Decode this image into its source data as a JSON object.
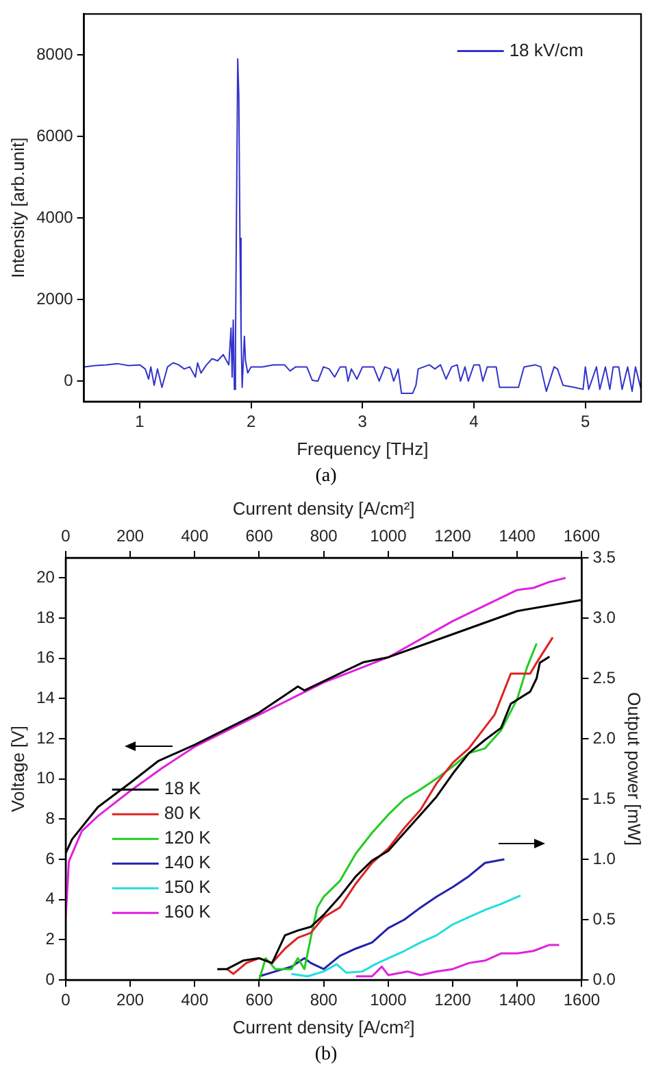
{
  "chart_data": [
    {
      "type": "line",
      "xlabel": "Frequency [THz]",
      "ylabel": "Intensity [arb.unit]",
      "xlim": [
        0.5,
        5.5
      ],
      "xticks": [
        1,
        2,
        3,
        4,
        5
      ],
      "ylim": [
        -500,
        9000
      ],
      "yticks": [
        0,
        2000,
        4000,
        6000,
        8000
      ],
      "legend": "top right",
      "annotations": [
        "(a)"
      ],
      "x": [
        0.5,
        0.6,
        0.7,
        0.8,
        0.9,
        1.0,
        1.05,
        1.08,
        1.1,
        1.13,
        1.16,
        1.2,
        1.25,
        1.3,
        1.35,
        1.4,
        1.45,
        1.5,
        1.52,
        1.55,
        1.6,
        1.65,
        1.7,
        1.75,
        1.8,
        1.82,
        1.83,
        1.84,
        1.85,
        1.86,
        1.88,
        1.89,
        1.9,
        1.91,
        1.92,
        1.94,
        1.95,
        1.97,
        2.0,
        2.1,
        2.2,
        2.3,
        2.35,
        2.4,
        2.5,
        2.55,
        2.6,
        2.65,
        2.7,
        2.75,
        2.8,
        2.85,
        2.87,
        2.9,
        2.95,
        3.0,
        3.1,
        3.15,
        3.2,
        3.25,
        3.28,
        3.32,
        3.35,
        3.45,
        3.48,
        3.5,
        3.55,
        3.6,
        3.65,
        3.7,
        3.75,
        3.8,
        3.85,
        3.88,
        3.92,
        3.95,
        4.0,
        4.05,
        4.08,
        4.12,
        4.2,
        4.23,
        4.3,
        4.4,
        4.45,
        4.55,
        4.6,
        4.65,
        4.72,
        4.75,
        4.8,
        4.9,
        4.98,
        5.0,
        5.03,
        5.1,
        5.13,
        5.18,
        5.22,
        5.25,
        5.3,
        5.33,
        5.38,
        5.42,
        5.45,
        5.5
      ],
      "series": [
        {
          "name": "18 kV/cm",
          "color": "#3333cc",
          "values": [
            350,
            380,
            400,
            430,
            380,
            400,
            300,
            50,
            350,
            -100,
            300,
            -150,
            350,
            450,
            400,
            300,
            350,
            100,
            450,
            200,
            400,
            550,
            500,
            650,
            400,
            1300,
            100,
            1500,
            -200,
            900,
            7900,
            7000,
            3500,
            1200,
            -150,
            1100,
            500,
            200,
            350,
            350,
            400,
            400,
            250,
            350,
            350,
            20,
            0,
            350,
            300,
            100,
            350,
            350,
            0,
            300,
            50,
            350,
            350,
            0,
            350,
            300,
            0,
            300,
            -300,
            -300,
            -100,
            300,
            350,
            400,
            300,
            400,
            50,
            350,
            400,
            0,
            350,
            0,
            400,
            400,
            0,
            350,
            350,
            -150,
            -150,
            -150,
            350,
            400,
            350,
            -250,
            350,
            300,
            -100,
            -150,
            -200,
            350,
            -200,
            350,
            -200,
            350,
            -200,
            350,
            350,
            -200,
            350,
            -250,
            350,
            -200
          ]
        }
      ]
    },
    {
      "type": "line",
      "xlabel": "Current density [A/cm²]",
      "x2label": "Current density [A/cm²]",
      "ylabel": "Voltage [V]",
      "y2label": "Output power [mW]",
      "xlim": [
        0,
        1600
      ],
      "xticks": [
        0,
        200,
        400,
        600,
        800,
        1000,
        1200,
        1400,
        1600
      ],
      "x2lim": [
        0,
        1600
      ],
      "x2ticks": [
        0,
        200,
        400,
        600,
        800,
        1000,
        1200,
        1400,
        1600
      ],
      "ylim": [
        0,
        21
      ],
      "yticks": [
        0,
        2,
        4,
        6,
        8,
        10,
        12,
        14,
        16,
        18,
        20
      ],
      "y2lim": [
        0,
        3.5
      ],
      "y2ticks": [
        {
          "value": 0,
          "label": "0.0"
        },
        {
          "value": 0.5,
          "label": "0.5"
        },
        {
          "value": 1,
          "label": "1.0"
        },
        {
          "value": 1.5,
          "label": "1.5"
        },
        {
          "value": 2,
          "label": "2.0"
        },
        {
          "value": 2.5,
          "label": "2.5"
        },
        {
          "value": 3,
          "label": "3.0"
        },
        {
          "value": 3.5,
          "label": "3.5"
        }
      ],
      "legend": "left",
      "annotations": [
        "(b)"
      ],
      "series": [
        {
          "color": "#000000",
          "x": [
            0,
            20,
            100,
            200,
            288,
            400,
            600,
            720,
            740,
            922,
            1000,
            1200,
            1400,
            1600
          ],
          "values": [
            6.3,
            7.0,
            8.6,
            9.8,
            10.9,
            11.7,
            13.3,
            14.6,
            14.4,
            15.8,
            16.05,
            17.2,
            18.35,
            18.9
          ]
        },
        {
          "color": "#e020e0",
          "x": [
            0,
            10,
            50,
            100,
            200,
            300,
            400,
            600,
            800,
            1000,
            1200,
            1400,
            1450,
            1500,
            1550
          ],
          "values": [
            3.1,
            5.9,
            7.4,
            8.15,
            9.4,
            10.55,
            11.6,
            13.2,
            14.8,
            16.05,
            17.85,
            19.4,
            19.5,
            19.8,
            20.0
          ]
        },
        {
          "name": "18 K",
          "color": "#000000",
          "axis": "y2",
          "x": [
            470,
            500,
            550,
            600,
            640,
            680,
            720,
            760,
            800,
            850,
            900,
            950,
            1000,
            1050,
            1100,
            1150,
            1200,
            1250,
            1300,
            1350,
            1380,
            1440,
            1460,
            1470,
            1500
          ],
          "values": [
            0.09,
            0.09,
            0.16,
            0.18,
            0.14,
            0.37,
            0.41,
            0.44,
            0.54,
            0.69,
            0.86,
            0.99,
            1.07,
            1.22,
            1.37,
            1.52,
            1.71,
            1.88,
            1.99,
            2.09,
            2.29,
            2.39,
            2.5,
            2.63,
            2.68
          ]
        },
        {
          "name": "80 K",
          "color": "#dd2222",
          "axis": "y2",
          "x": [
            500,
            520,
            560,
            600,
            640,
            680,
            720,
            760,
            800,
            850,
            900,
            950,
            1000,
            1050,
            1100,
            1150,
            1200,
            1250,
            1330,
            1380,
            1440,
            1460,
            1510
          ],
          "values": [
            0.09,
            0.05,
            0.14,
            0.18,
            0.14,
            0.26,
            0.35,
            0.39,
            0.52,
            0.6,
            0.8,
            0.97,
            1.09,
            1.26,
            1.41,
            1.63,
            1.8,
            1.92,
            2.2,
            2.54,
            2.54,
            2.63,
            2.84
          ]
        },
        {
          "name": "120 K",
          "color": "#22cc22",
          "axis": "y2",
          "x": [
            600,
            620,
            650,
            700,
            720,
            740,
            760,
            780,
            800,
            850,
            900,
            950,
            1000,
            1050,
            1100,
            1150,
            1200,
            1250,
            1300,
            1350,
            1400,
            1430,
            1460
          ],
          "values": [
            0,
            0.18,
            0.09,
            0.09,
            0.18,
            0.09,
            0.35,
            0.6,
            0.69,
            0.82,
            1.05,
            1.22,
            1.37,
            1.5,
            1.58,
            1.67,
            1.77,
            1.88,
            1.92,
            2.07,
            2.33,
            2.59,
            2.79
          ]
        },
        {
          "name": "140 K",
          "color": "#2222aa",
          "axis": "y2",
          "x": [
            600,
            650,
            700,
            740,
            760,
            800,
            850,
            900,
            950,
            1000,
            1050,
            1100,
            1150,
            1200,
            1250,
            1300,
            1360
          ],
          "values": [
            0.03,
            0.07,
            0.11,
            0.18,
            0.14,
            0.09,
            0.2,
            0.26,
            0.31,
            0.43,
            0.5,
            0.6,
            0.69,
            0.77,
            0.86,
            0.97,
            1.0
          ]
        },
        {
          "name": "150 K",
          "color": "#22dddd",
          "axis": "y2",
          "x": [
            700,
            750,
            800,
            840,
            870,
            920,
            960,
            1000,
            1050,
            1100,
            1150,
            1200,
            1250,
            1300,
            1350,
            1410
          ],
          "values": [
            0.05,
            0.03,
            0.07,
            0.13,
            0.06,
            0.07,
            0.13,
            0.18,
            0.24,
            0.31,
            0.37,
            0.46,
            0.52,
            0.58,
            0.63,
            0.7
          ]
        },
        {
          "name": "160 K",
          "color": "#e020e0",
          "axis": "y2",
          "x": [
            900,
            950,
            980,
            1000,
            1060,
            1100,
            1150,
            1200,
            1250,
            1300,
            1350,
            1400,
            1450,
            1500,
            1530
          ],
          "values": [
            0.03,
            0.03,
            0.11,
            0.04,
            0.07,
            0.04,
            0.07,
            0.09,
            0.14,
            0.16,
            0.22,
            0.22,
            0.24,
            0.29,
            0.29
          ]
        }
      ]
    }
  ]
}
